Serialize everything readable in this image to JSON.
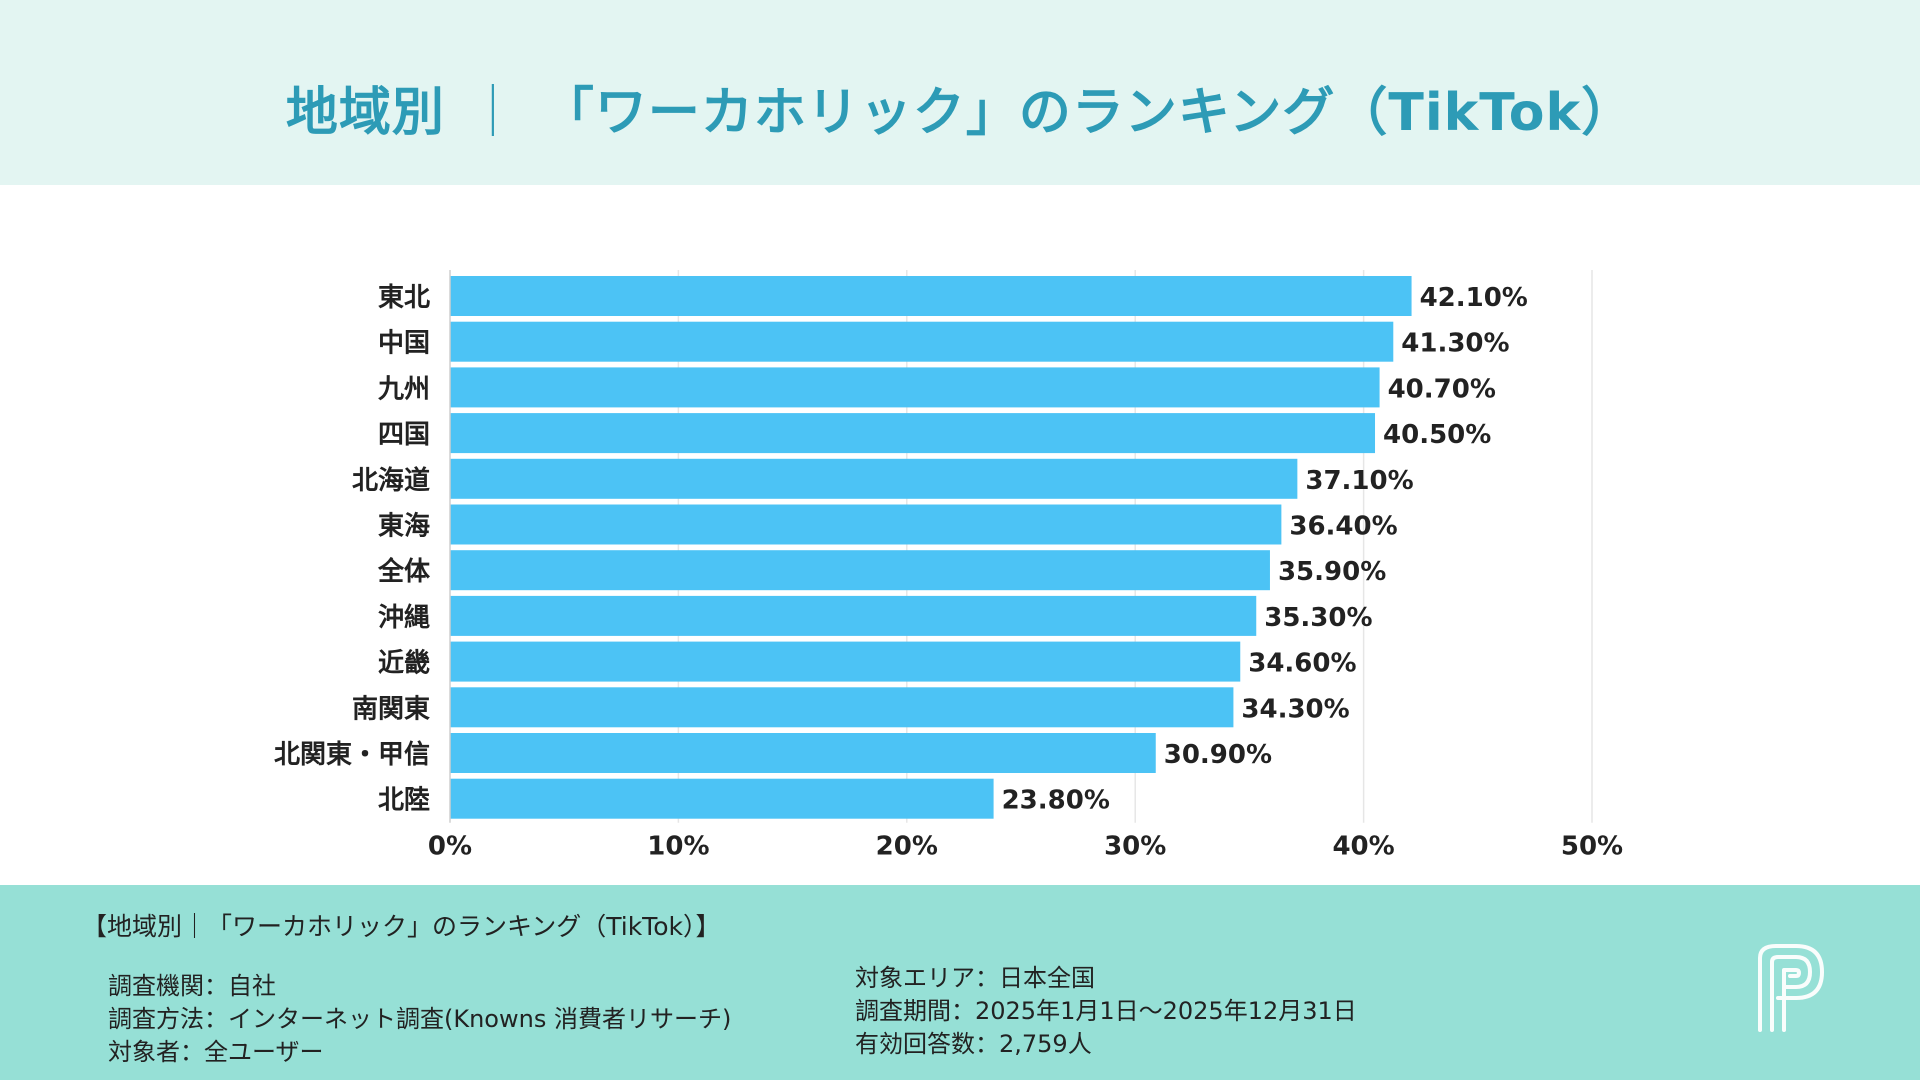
{
  "header": {
    "title_region": "地域別",
    "title_sep": "｜",
    "title_main": "「ワーカホリック」のランキング（TikTok）"
  },
  "chart_data": {
    "type": "bar",
    "orientation": "horizontal",
    "categories": [
      "東北",
      "中国",
      "九州",
      "四国",
      "北海道",
      "東海",
      "全体",
      "沖縄",
      "近畿",
      "南関東",
      "北関東・甲信",
      "北陸"
    ],
    "values": [
      42.1,
      41.3,
      40.7,
      40.5,
      37.1,
      36.4,
      35.9,
      35.3,
      34.6,
      34.3,
      30.9,
      23.8
    ],
    "value_labels": [
      "42.10%",
      "41.30%",
      "40.70%",
      "40.50%",
      "37.10%",
      "36.40%",
      "35.90%",
      "35.30%",
      "34.60%",
      "34.30%",
      "30.90%",
      "23.80%"
    ],
    "xlim": [
      0,
      50
    ],
    "xticks": [
      0,
      10,
      20,
      30,
      40,
      50
    ],
    "xtick_labels": [
      "0%",
      "10%",
      "20%",
      "30%",
      "40%",
      "50%"
    ],
    "bar_color": "#4cc3f5",
    "grid": true
  },
  "footer": {
    "title": "【地域別｜「ワーカホリック」のランキング（TikTok）】",
    "left": [
      "調査機関：自社",
      "調査方法：インターネット調査(Knowns 消費者リサーチ)",
      "対象者：全ユーザー"
    ],
    "right": [
      "対象エリア：日本全国",
      "調査期間：2025年1月1日〜2025年12月31日",
      "有効回答数：2,759人"
    ]
  },
  "colors": {
    "header_bg": "#e3f5f2",
    "title": "#2d9bb6",
    "footer_bg": "#96e0d6"
  },
  "logo_icon": "brand-p-logo-icon"
}
